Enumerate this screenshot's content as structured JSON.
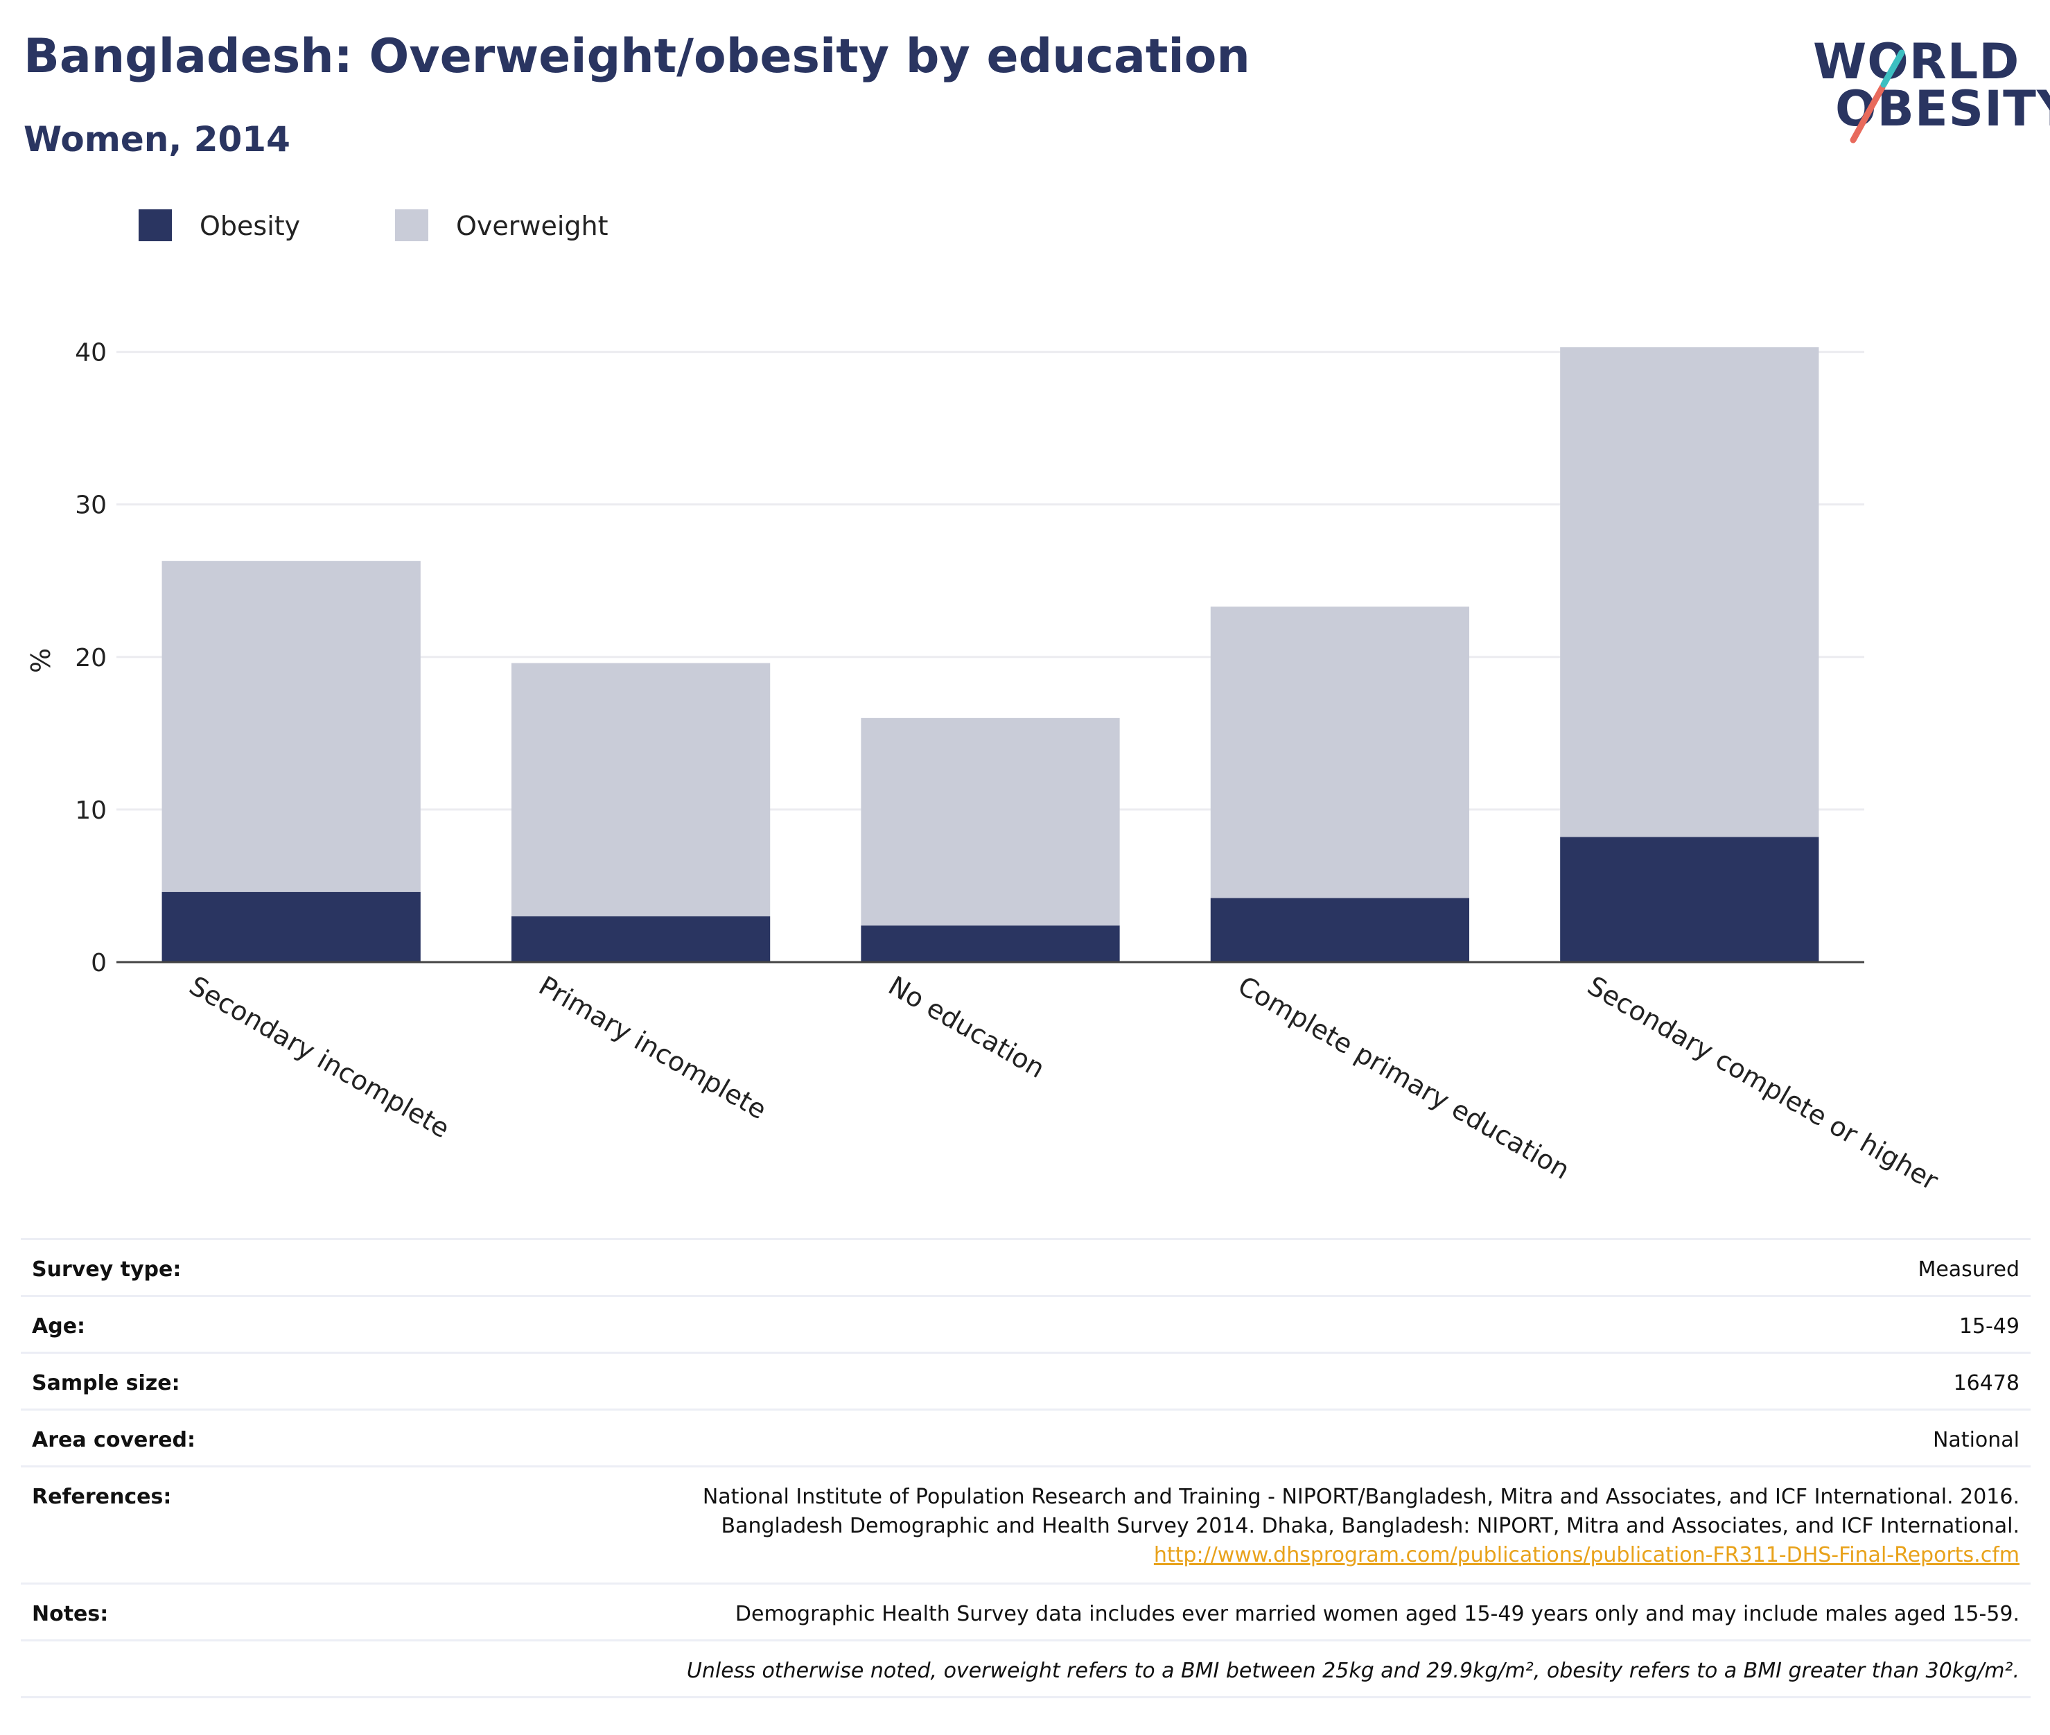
{
  "header": {
    "title": "Bangladesh: Overweight/obesity by education",
    "subtitle": "Women, 2014"
  },
  "logo": {
    "line1": "WORLD",
    "line2": "OBESITY"
  },
  "colors": {
    "obesity": "#2a3561",
    "overweight": "#c9ccd8",
    "title": "#2a3561",
    "link": "#e8a21b",
    "logo_slash_teal": "#3dbfc1",
    "logo_slash_coral": "#e86a5c"
  },
  "chart_data": {
    "type": "bar",
    "stacked": true,
    "categories": [
      "Secondary incomplete",
      "Primary incomplete",
      "No education",
      "Complete primary education",
      "Secondary complete or higher"
    ],
    "series": [
      {
        "name": "Obesity",
        "values": [
          4.6,
          3.0,
          2.4,
          4.2,
          8.2
        ]
      },
      {
        "name": "Overweight",
        "values": [
          21.7,
          16.6,
          13.6,
          19.1,
          32.1
        ]
      }
    ],
    "ylabel": "%",
    "xlabel": "",
    "ylim": [
      0,
      40.8
    ],
    "yticks": [
      0,
      10,
      20,
      30,
      40
    ],
    "legend_position": "top-left",
    "grid": true
  },
  "meta": {
    "survey_type": {
      "label": "Survey type:",
      "value": "Measured"
    },
    "age": {
      "label": "Age:",
      "value": "15-49"
    },
    "sample_size": {
      "label": "Sample size:",
      "value": "16478"
    },
    "area_covered": {
      "label": "Area covered:",
      "value": "National"
    },
    "references": {
      "label": "References:",
      "line1": "National Institute of Population Research and Training - NIPORT/Bangladesh, Mitra and Associates, and ICF International. 2016.",
      "line2": "Bangladesh Demographic and Health Survey 2014. Dhaka, Bangladesh: NIPORT, Mitra and Associates, and ICF International.",
      "link": "http://www.dhsprogram.com/publications/publication-FR311-DHS-Final-Reports.cfm"
    },
    "notes": {
      "label": "Notes:",
      "value": "Demographic Health Survey data includes ever married women aged 15-49 years only and may include males aged 15-59."
    },
    "footnote": "Unless otherwise noted, overweight refers to a BMI between 25kg and 29.9kg/m², obesity refers to a BMI greater than 30kg/m²."
  }
}
